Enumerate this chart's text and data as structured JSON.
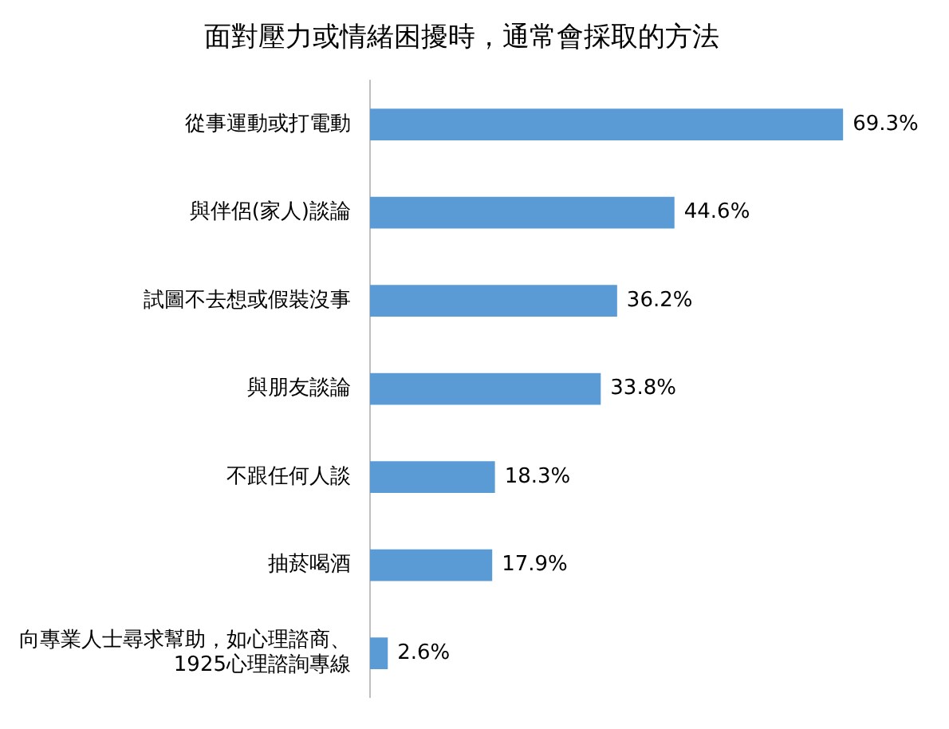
{
  "chart_data": {
    "type": "bar",
    "orientation": "horizontal",
    "title": "面對壓力或情緒困擾時，通常會採取的方法",
    "categories": [
      "從事運動或打電動",
      "與伴侶(家人)談論",
      "試圖不去想或假裝沒事",
      "與朋友談論",
      "不跟任何人談",
      "抽菸喝酒",
      "向專業人士尋求幫助，如心理諮商、1925心理諮詢專線"
    ],
    "values": [
      69.3,
      44.6,
      36.2,
      33.8,
      18.3,
      17.9,
      2.6
    ],
    "value_labels": [
      "69.3%",
      "44.6%",
      "36.2%",
      "33.8%",
      "18.3%",
      "17.9%",
      "2.6%"
    ],
    "color": "#5b9bd5",
    "legend": false
  }
}
